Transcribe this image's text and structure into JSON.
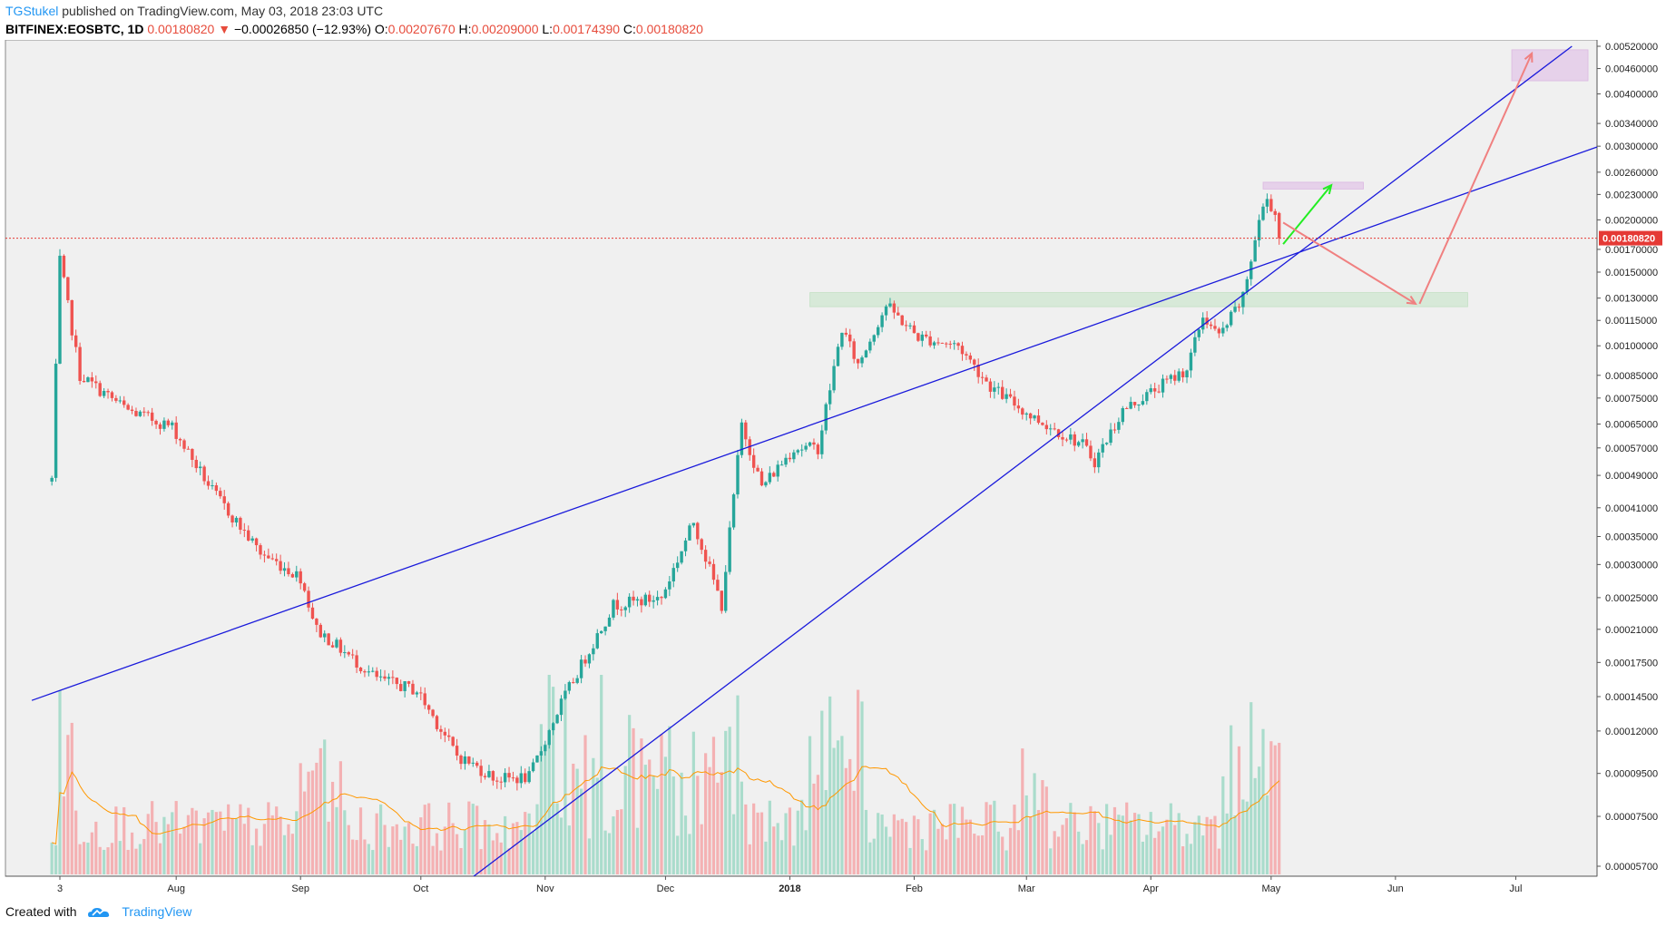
{
  "header": {
    "author": "TGStukel",
    "published": "published on TradingView.com, May 03, 2018 23:03 UTC",
    "symbol": "BITFINEX:EOSBTC, 1D",
    "last": "0.00180820",
    "change_arrow": "▼",
    "change": "−0.00026850 (−12.93%)",
    "o_label": "O:",
    "o_value": "0.00207670",
    "h_label": "H:",
    "h_value": "0.00209000",
    "l_label": "L:",
    "l_value": "0.00174390",
    "c_label": "C:",
    "c_value": "0.00180820"
  },
  "footer": {
    "created_with": "Created with",
    "brand": "TradingView",
    "brand_icon": "tradingview-cloud-icon"
  },
  "colors": {
    "up": "#26a69a",
    "down": "#ef5350",
    "trendline": "#1a1adb",
    "price_line": "#e53935",
    "zone_green": "#c8e6c9",
    "zone_pink": "#e1bee7",
    "arrow_up": "#22ee22",
    "arrow_down": "#f08080"
  },
  "chart_data": {
    "type": "candlestick",
    "title": "",
    "scale": "log",
    "grid": false,
    "ylim": [
      5.2e-05,
      0.0052
    ],
    "y_ticks": [
      "0.00520000",
      "0.00460000",
      "0.00400000",
      "0.00340000",
      "0.00300000",
      "0.00260000",
      "0.00230000",
      "0.00200000",
      "0.00170000",
      "0.00150000",
      "0.00130000",
      "0.00115000",
      "0.00100000",
      "0.00085000",
      "0.00075000",
      "0.00065000",
      "0.00057000",
      "0.00049000",
      "0.00041000",
      "0.00035000",
      "0.00030000",
      "0.00025000",
      "0.00021000",
      "0.00017500",
      "0.00014500",
      "0.00012000",
      "0.00009500",
      "0.00007500",
      "0.00005700"
    ],
    "x_ticks": [
      {
        "date": "2017-07-03",
        "label": "3",
        "bold": false
      },
      {
        "date": "2017-08-01",
        "label": "Aug",
        "bold": false
      },
      {
        "date": "2017-09-01",
        "label": "Sep",
        "bold": false
      },
      {
        "date": "2017-10-01",
        "label": "Oct",
        "bold": false
      },
      {
        "date": "2017-11-01",
        "label": "Nov",
        "bold": false
      },
      {
        "date": "2017-12-01",
        "label": "Dec",
        "bold": false
      },
      {
        "date": "2018-01-01",
        "label": "2018",
        "bold": true
      },
      {
        "date": "2018-02-01",
        "label": "Feb",
        "bold": false
      },
      {
        "date": "2018-03-01",
        "label": "Mar",
        "bold": false
      },
      {
        "date": "2018-04-01",
        "label": "Apr",
        "bold": false
      },
      {
        "date": "2018-05-01",
        "label": "May",
        "bold": false
      },
      {
        "date": "2018-06-01",
        "label": "Jun",
        "bold": false
      },
      {
        "date": "2018-07-01",
        "label": "Jul",
        "bold": false
      }
    ],
    "last_price": 0.0018082,
    "last_price_label": "0.00180820",
    "ohlc_keypoints": [
      {
        "date": "2017-07-01",
        "close": 0.00048
      },
      {
        "date": "2017-07-03",
        "close": 0.0016
      },
      {
        "date": "2017-07-08",
        "close": 0.00085
      },
      {
        "date": "2017-07-20",
        "close": 0.0007
      },
      {
        "date": "2017-07-31",
        "close": 0.00064
      },
      {
        "date": "2017-08-10",
        "close": 0.00045
      },
      {
        "date": "2017-08-22",
        "close": 0.00032
      },
      {
        "date": "2017-09-01",
        "close": 0.00028
      },
      {
        "date": "2017-09-05",
        "close": 0.00021
      },
      {
        "date": "2017-09-20",
        "close": 0.00016
      },
      {
        "date": "2017-09-30",
        "close": 0.00015
      },
      {
        "date": "2017-10-10",
        "close": 0.000105
      },
      {
        "date": "2017-10-20",
        "close": 9.2e-05
      },
      {
        "date": "2017-10-28",
        "close": 9.3e-05
      },
      {
        "date": "2017-11-05",
        "close": 0.00014
      },
      {
        "date": "2017-11-18",
        "close": 0.00024
      },
      {
        "date": "2017-11-30",
        "close": 0.00025
      },
      {
        "date": "2017-12-08",
        "close": 0.00038
      },
      {
        "date": "2017-12-15",
        "close": 0.00024
      },
      {
        "date": "2017-12-20",
        "close": 0.00065
      },
      {
        "date": "2017-12-25",
        "close": 0.00046
      },
      {
        "date": "2018-01-02",
        "close": 0.00057
      },
      {
        "date": "2018-01-08",
        "close": 0.00057
      },
      {
        "date": "2018-01-14",
        "close": 0.0011
      },
      {
        "date": "2018-01-18",
        "close": 0.0009
      },
      {
        "date": "2018-01-25",
        "close": 0.00125
      },
      {
        "date": "2018-02-02",
        "close": 0.00105
      },
      {
        "date": "2018-02-12",
        "close": 0.001
      },
      {
        "date": "2018-02-20",
        "close": 0.0008
      },
      {
        "date": "2018-03-02",
        "close": 0.00068
      },
      {
        "date": "2018-03-15",
        "close": 0.00058
      },
      {
        "date": "2018-03-18",
        "close": 0.00053
      },
      {
        "date": "2018-03-25",
        "close": 0.0007
      },
      {
        "date": "2018-04-05",
        "close": 0.00082
      },
      {
        "date": "2018-04-10",
        "close": 0.00088
      },
      {
        "date": "2018-04-14",
        "close": 0.00118
      },
      {
        "date": "2018-04-18",
        "close": 0.00105
      },
      {
        "date": "2018-04-24",
        "close": 0.0013
      },
      {
        "date": "2018-04-28",
        "close": 0.002
      },
      {
        "date": "2018-04-30",
        "close": 0.00225
      },
      {
        "date": "2018-05-02",
        "close": 0.00207
      },
      {
        "date": "2018-05-03",
        "close": 0.0018082
      }
    ],
    "volume": {
      "unit": "relative",
      "max": 1.0,
      "ma_color": "#ff9800"
    },
    "drawings": {
      "trendlines": [
        {
          "from": {
            "date": "2017-06-26",
            "price": 0.000142
          },
          "to": {
            "date": "2018-07-26",
            "price": 0.0031
          }
        },
        {
          "from": {
            "date": "2017-10-12",
            "price": 5.2e-05
          },
          "to": {
            "date": "2018-07-15",
            "price": 0.0052
          }
        }
      ],
      "zones": [
        {
          "color": "green",
          "from_date": "2018-01-06",
          "to_date": "2018-06-19",
          "low": 0.00124,
          "high": 0.00134
        },
        {
          "color": "pink",
          "from_date": "2018-04-29",
          "to_date": "2018-05-24",
          "low": 0.00237,
          "high": 0.00246
        },
        {
          "color": "pink",
          "from_date": "2018-06-30",
          "to_date": "2018-07-19",
          "low": 0.0043,
          "high": 0.0051
        }
      ],
      "arrows": [
        {
          "color": "green",
          "from": {
            "date": "2018-05-04",
            "price": 0.00175
          },
          "to": {
            "date": "2018-05-16",
            "price": 0.00242
          }
        },
        {
          "color": "red",
          "from": {
            "date": "2018-05-04",
            "price": 0.00197
          },
          "to": {
            "date": "2018-06-06",
            "price": 0.00126
          }
        },
        {
          "color": "red",
          "from": {
            "date": "2018-06-07",
            "price": 0.00126
          },
          "to": {
            "date": "2018-07-05",
            "price": 0.005
          }
        }
      ]
    }
  }
}
